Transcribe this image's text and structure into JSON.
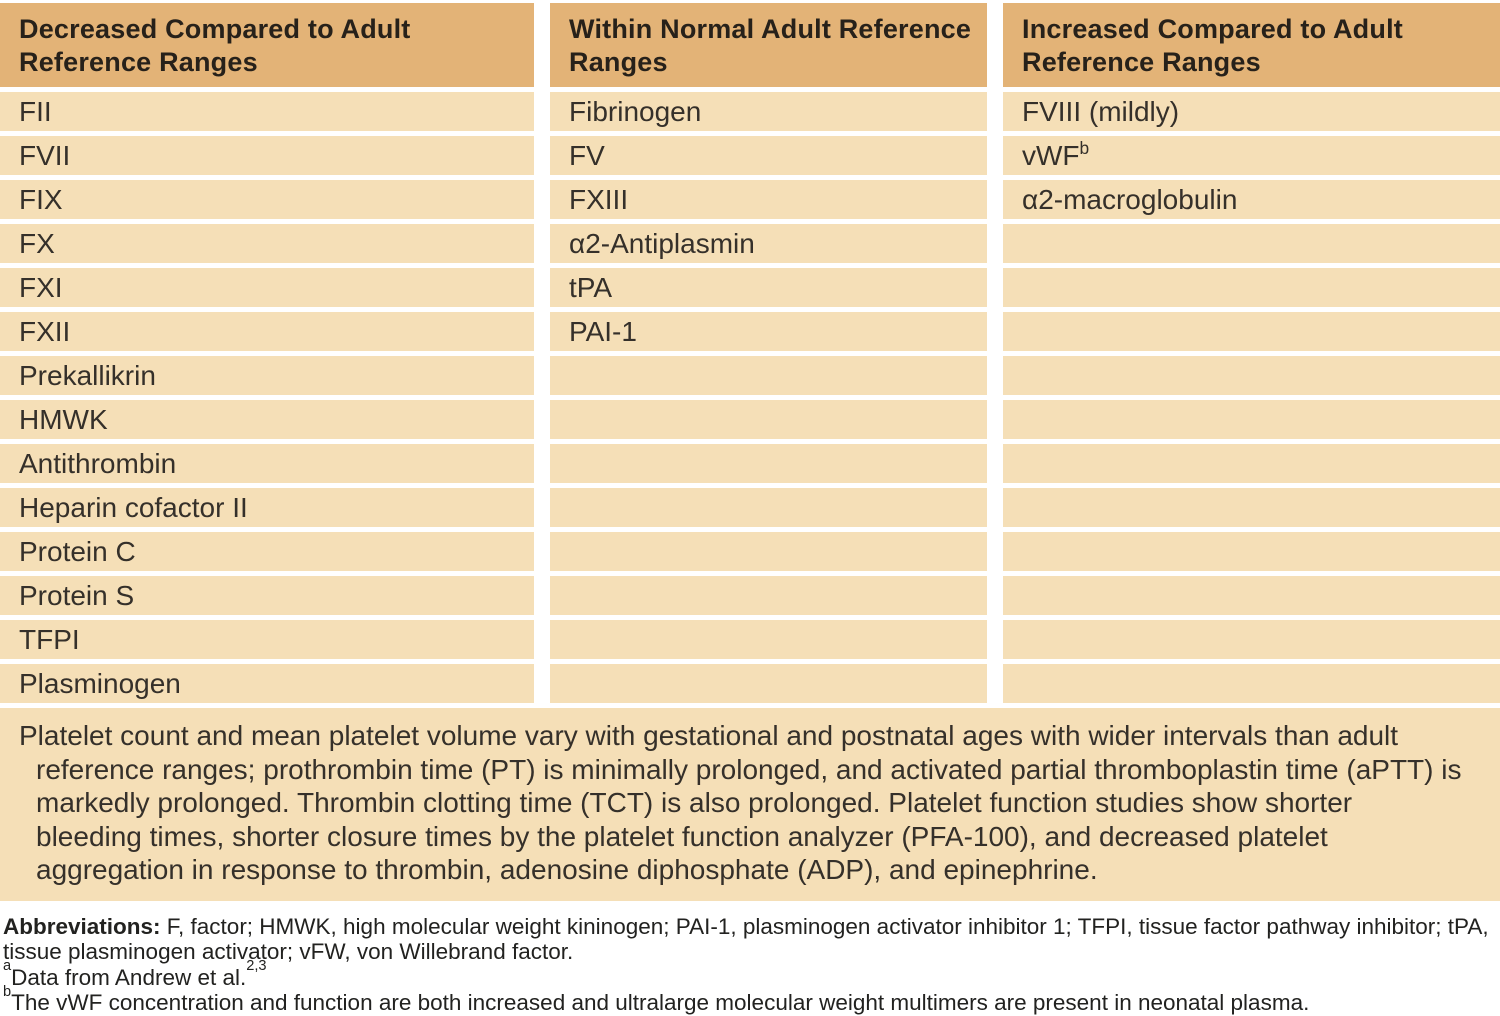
{
  "table": {
    "headers": {
      "decreased": "Decreased Compared to Adult\nReference Ranges",
      "normal": "Within Normal Adult Reference\nRanges",
      "increased": "Increased Compared to Adult\nReference Ranges"
    },
    "rows": [
      [
        "FII",
        "Fibrinogen",
        "FVIII (mildly)"
      ],
      [
        "FVII",
        "FV",
        {
          "text": "vWF",
          "sup": "b"
        }
      ],
      [
        "FIX",
        "FXIII",
        "α2-macroglobulin"
      ],
      [
        "FX",
        "α2-Antiplasmin",
        ""
      ],
      [
        "FXI",
        "tPA",
        ""
      ],
      [
        "FXII",
        "PAI-1",
        ""
      ],
      [
        "Prekallikrin",
        "",
        ""
      ],
      [
        "HMWK",
        "",
        ""
      ],
      [
        "Antithrombin",
        "",
        ""
      ],
      [
        "Heparin cofactor II",
        "",
        ""
      ],
      [
        "Protein C",
        "",
        ""
      ],
      [
        "Protein S",
        "",
        ""
      ],
      [
        "TFPI",
        "",
        ""
      ],
      [
        "Plasminogen",
        "",
        ""
      ]
    ],
    "note": "Platelet count and mean platelet volume vary with gestational and postnatal ages with wider intervals than adult reference ranges; prothrombin time (PT) is minimally prolonged, and activated partial thromboplastin time (aPTT) is markedly prolonged. Thrombin clotting time (TCT) is also prolonged. Platelet function studies show shorter bleeding times, shorter closure times by the platelet function analyzer (PFA-100), and decreased platelet aggregation in response to thrombin, adenosine diphosphate (ADP), and epinephrine."
  },
  "footnotes": {
    "abbreviations_label": "Abbreviations:",
    "abbreviations_text": " F, factor; HMWK, high molecular weight kininogen; PAI-1, plasminogen activator inhibitor 1; TFPI, tissue factor pathway inhibitor; tPA, tissue plasminogen activator; vFW, von Willebrand factor.",
    "footnote_a": {
      "sup": "a",
      "text": "Data from Andrew et al.",
      "refs": "2,3"
    },
    "footnote_b": {
      "sup": "b",
      "text": "The vWF concentration and function are both increased and ultralarge molecular weight multimers are present in neonatal plasma."
    }
  },
  "colors": {
    "header_bg": "#e3b377",
    "row_bg": "#f5dfb7",
    "header_text": "#27211a",
    "body_text": "#35302a",
    "footer_text": "#222220"
  }
}
